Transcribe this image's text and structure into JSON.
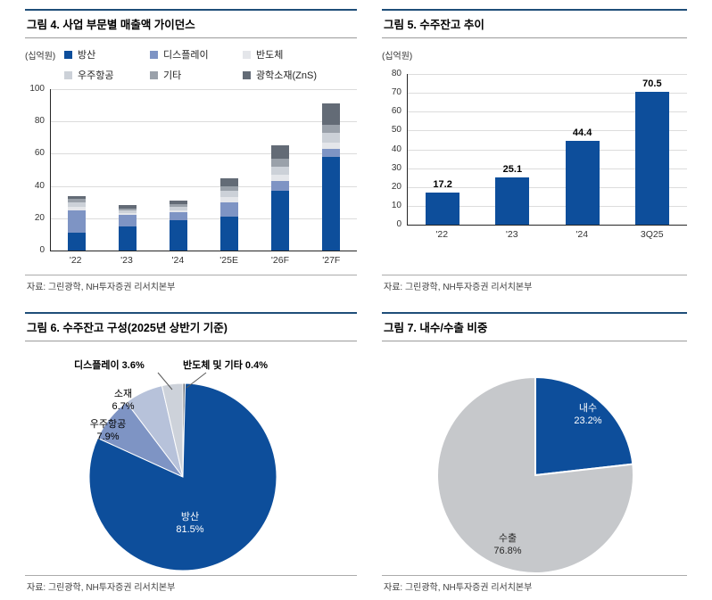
{
  "colors": {
    "accent_navy": "#1f4e79",
    "bar_navy": "#0d4e9b",
    "grid_gray": "#dcdcdc"
  },
  "chart_data": [
    {
      "id": "figure4",
      "figure_title": "그림 4. 사업 부문별 매출액 가이던스",
      "type": "bar",
      "stacked": true,
      "unit_label": "(십억원)",
      "source": "자료: 그린광학, NH투자증권 리서치본부",
      "categories": [
        "'22",
        "'23",
        "'24",
        "'25E",
        "'26F",
        "'27F"
      ],
      "series": [
        {
          "name": "방산",
          "color": "#0d4e9b",
          "values": [
            11,
            15,
            19,
            21,
            37,
            58
          ]
        },
        {
          "name": "디스플레이",
          "color": "#7e94c4",
          "values": [
            14,
            7,
            5,
            9,
            6,
            5
          ]
        },
        {
          "name": "반도체",
          "color": "#e4e6ea",
          "values": [
            2,
            1,
            1,
            3,
            4,
            4
          ]
        },
        {
          "name": "우주항공",
          "color": "#ccd1d8",
          "values": [
            3,
            2,
            2,
            4,
            5,
            6
          ]
        },
        {
          "name": "기타",
          "color": "#9aa1aa",
          "values": [
            2,
            1,
            2,
            3,
            5,
            5
          ]
        },
        {
          "name": "광학소재(ZnS)",
          "color": "#636b76",
          "values": [
            2,
            2,
            2,
            5,
            8,
            13
          ]
        }
      ],
      "ylim": [
        0,
        100
      ],
      "ytick_step": 20,
      "grid": true,
      "legend_position": "top"
    },
    {
      "id": "figure5",
      "figure_title": "그림 5. 수주잔고 추이",
      "type": "bar",
      "stacked": false,
      "unit_label": "(십억원)",
      "source": "자료: 그린광학, NH투자증권 리서치본부",
      "categories": [
        "'22",
        "'23",
        "'24",
        "3Q25"
      ],
      "values": [
        17.2,
        25.1,
        44.4,
        70.5
      ],
      "value_labels": [
        "17.2",
        "25.1",
        "44.4",
        "70.5"
      ],
      "bar_color": "#0d4e9b",
      "ylim": [
        0,
        80
      ],
      "ytick_step": 10,
      "grid": true,
      "legend_position": "none"
    },
    {
      "id": "figure6",
      "figure_title": "그림 6. 수주잔고 구성(2025년 상반기 기준)",
      "type": "pie",
      "source": "자료: 그린광학, NH투자증권 리서치본부",
      "slices": [
        {
          "label": "반도체 및 기타",
          "pct": 0.4,
          "pct_label": "0.4%",
          "color": "#636b76"
        },
        {
          "label": "방산",
          "pct": 81.5,
          "pct_label": "81.5%",
          "color": "#0d4e9b"
        },
        {
          "label": "우주항공",
          "pct": 7.9,
          "pct_label": "7.9%",
          "color": "#7e94c4"
        },
        {
          "label": "소재",
          "pct": 6.7,
          "pct_label": "6.7%",
          "color": "#b7c2da"
        },
        {
          "label": "디스플레이",
          "pct": 3.6,
          "pct_label": "3.6%",
          "color": "#cdd2da"
        }
      ],
      "start_angle_deg": 0,
      "direction": "clockwise"
    },
    {
      "id": "figure7",
      "figure_title": "그림 7. 내수/수출 비중",
      "type": "pie",
      "source": "자료: 그린광학, NH투자증권 리서치본부",
      "slices": [
        {
          "label": "내수",
          "pct": 23.2,
          "pct_label": "23.2%",
          "color": "#0d4e9b"
        },
        {
          "label": "수출",
          "pct": 76.8,
          "pct_label": "76.8%",
          "color": "#c6c8cb"
        }
      ],
      "start_angle_deg": 0,
      "direction": "clockwise"
    }
  ]
}
